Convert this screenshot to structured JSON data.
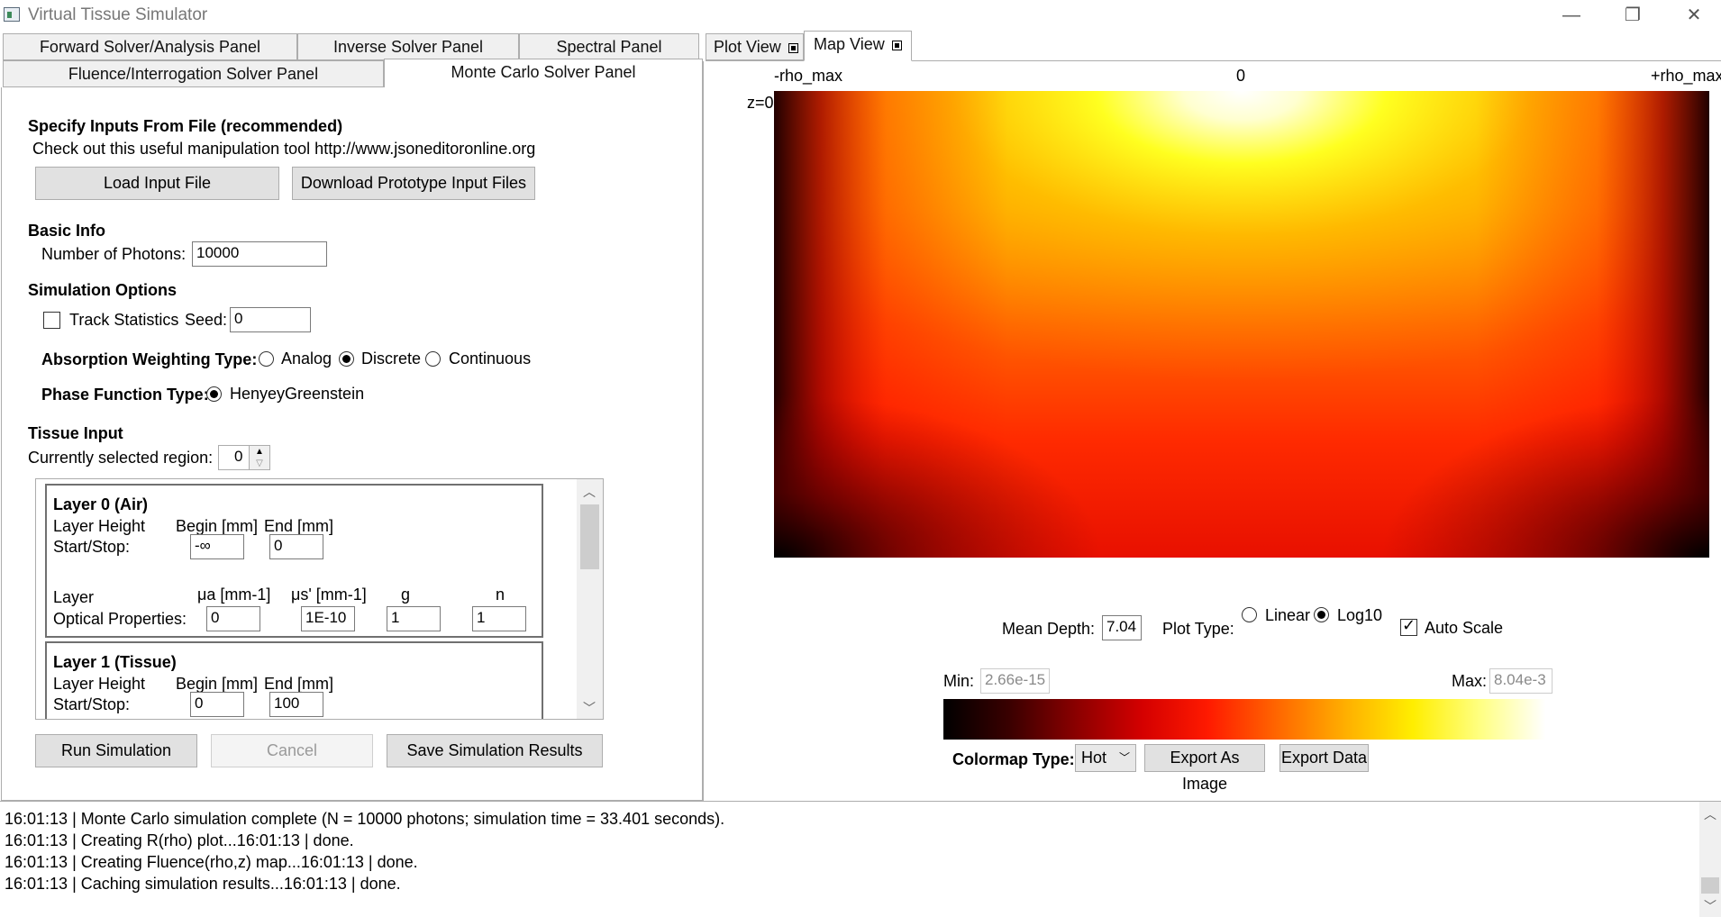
{
  "window": {
    "title": "Virtual Tissue Simulator",
    "minimize_glyph": "—",
    "restore_glyph": "❐",
    "close_glyph": "✕"
  },
  "left_tabs": {
    "row1": [
      "Forward Solver/Analysis Panel",
      "Inverse Solver Panel",
      "Spectral Panel"
    ],
    "row2": [
      "Fluence/Interrogation Solver Panel",
      "Monte Carlo Solver Panel"
    ],
    "selected": "Monte Carlo Solver Panel"
  },
  "right_tabs": [
    "Plot View",
    "Map View"
  ],
  "right_tabs_selected": "Map View",
  "mc_panel": {
    "specify_inputs_heading": "Specify Inputs From File (recommended)",
    "tool_hint": "Check out this useful manipulation tool http://www.jsoneditoronline.org",
    "load_input_button": "Load Input File",
    "download_prototype_button": "Download Prototype Input Files",
    "basic_info_heading": "Basic Info",
    "photons_label": "Number of Photons:",
    "photons_value": "10000",
    "sim_options_heading": "Simulation Options",
    "track_statistics_label": "Track Statistics",
    "track_statistics_checked": false,
    "seed_label": "Seed:",
    "seed_value": "0",
    "absorption_label": "Absorption Weighting Type:",
    "absorption_options": [
      "Analog",
      "Discrete",
      "Continuous"
    ],
    "absorption_selected": "Discrete",
    "phase_function_label": "Phase Function Type:",
    "phase_function_option": "HenyeyGreenstein",
    "tissue_input_heading": "Tissue Input",
    "selected_region_label": "Currently selected region:",
    "selected_region_value": "0",
    "layers": [
      {
        "title": "Layer 0 (Air)",
        "height_label": "Layer Height",
        "start_stop_label": "Start/Stop:",
        "begin_label": "Begin [mm]",
        "end_label": "End [mm]",
        "begin_value": "-∞",
        "end_value": "0",
        "layer_label": "Layer",
        "optical_label": "Optical Properties:",
        "mua_label": "μa [mm-1]",
        "musp_label": "μs' [mm-1]",
        "g_label": "g",
        "n_label": "n",
        "mua_value": "0",
        "musp_value": "1E-10",
        "g_value": "1",
        "n_value": "1"
      },
      {
        "title": "Layer 1 (Tissue)",
        "height_label": "Layer Height",
        "start_stop_label": "Start/Stop:",
        "begin_label": "Begin [mm]",
        "end_label": "End [mm]",
        "begin_value": "0",
        "end_value": "100"
      }
    ],
    "run_button": "Run Simulation",
    "cancel_button": "Cancel",
    "save_button": "Save Simulation Results"
  },
  "map_view": {
    "rho_min_label": "-rho_max",
    "rho_zero_label": "0",
    "rho_max_label": "+rho_max",
    "z_label": "z=0",
    "mean_depth_label": "Mean Depth:",
    "mean_depth_value": "7.04",
    "plot_type_label": "Plot Type:",
    "plot_type_options": [
      "Linear",
      "Log10"
    ],
    "plot_type_selected": "Log10",
    "auto_scale_label": "Auto Scale",
    "auto_scale_checked": true,
    "min_label": "Min:",
    "min_value": "2.66e-15",
    "max_label": "Max:",
    "max_value": "8.04e-3",
    "colormap_label": "Colormap Type:",
    "colormap_value": "Hot",
    "export_image_button": "Export As Image",
    "export_data_button": "Export Data",
    "colormap_colors": [
      "#000000",
      "#3a0000",
      "#8a0000",
      "#d40000",
      "#ff1a00",
      "#ff6a00",
      "#ffb000",
      "#ffee00",
      "#ffff80",
      "#ffffff"
    ]
  },
  "log": {
    "lines": [
      "16:01:13 | Monte Carlo simulation complete (N = 10000 photons; simulation time = 33.401 seconds).",
      "16:01:13 | Creating R(rho) plot...16:01:13 | done.",
      "16:01:13 | Creating Fluence(rho,z) map...16:01:13 | done.",
      "16:01:13 | Caching simulation results...16:01:13 | done."
    ]
  }
}
